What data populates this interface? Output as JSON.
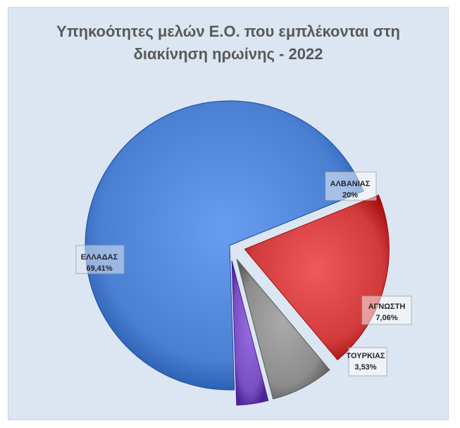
{
  "chart_data": {
    "type": "pie",
    "title_lines": [
      "Υπηκοότητες μελών Ε.Ο. που εμπλέκονται στη",
      "διακίνηση ηρωίνης - 2022"
    ],
    "slices": [
      {
        "name": "ΕΛΛΑΔΑΣ",
        "value": 69.41,
        "label": "69,41%",
        "color": "#4a7fd1"
      },
      {
        "name": "ΑΛΒΑΝΙΑΣ",
        "value": 20,
        "label": "20%",
        "color": "#d13b3b"
      },
      {
        "name": "ΑΓΝΩΣΤΗ",
        "value": 7.06,
        "label": "7,06%",
        "color": "#8c8c8c"
      },
      {
        "name": "ΤΟΥΡΚΙΑΣ",
        "value": 3.53,
        "label": "3,53%",
        "color": "#7b4fc4"
      }
    ],
    "exploded": true,
    "legend": "none",
    "data_labels": "name-and-percent"
  }
}
